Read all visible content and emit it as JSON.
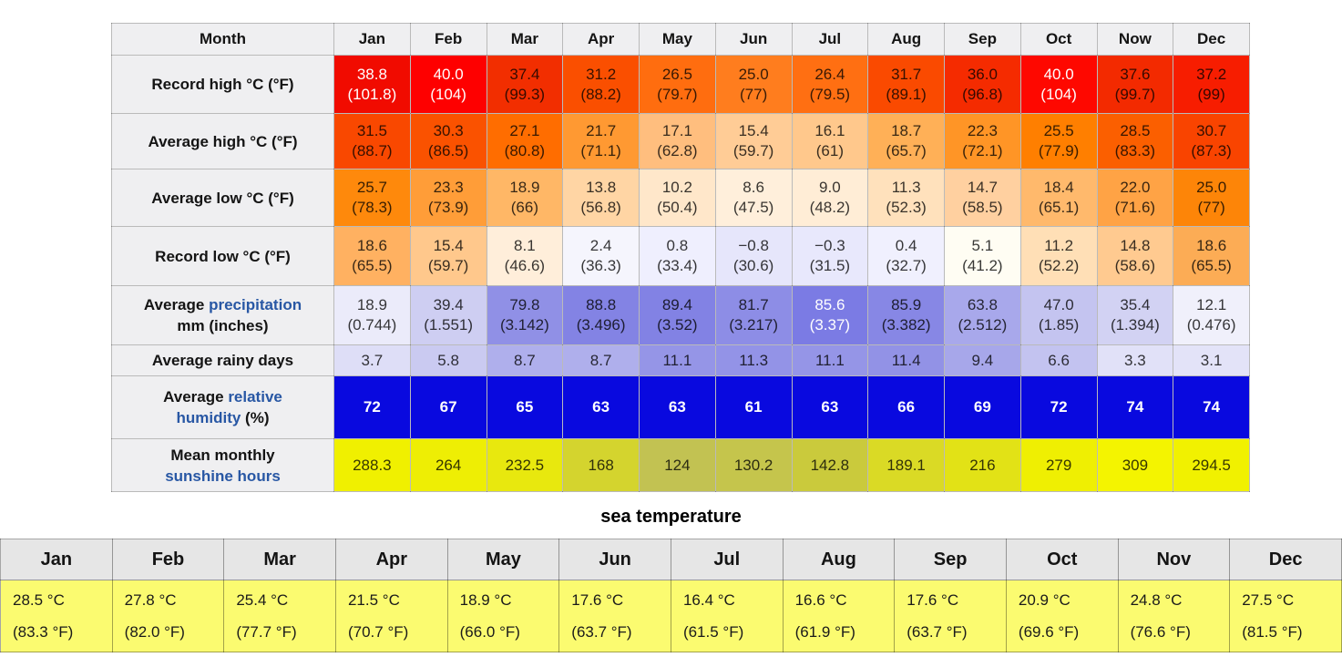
{
  "theme": {
    "link_color": "#2857A4",
    "humidity_blue": "#0909DF",
    "sea_cell_bg": "#FBFB70",
    "header_bg": "#EFEFF1"
  },
  "climate_table": {
    "header": {
      "label": "Month",
      "months": [
        "Jan",
        "Feb",
        "Mar",
        "Apr",
        "May",
        "Jun",
        "Jul",
        "Aug",
        "Sep",
        "Oct",
        "Now",
        "Dec"
      ]
    },
    "rows": [
      {
        "id": "record-high",
        "label_parts": [
          {
            "text": "Record high °C (°F)"
          }
        ],
        "cells": [
          {
            "v": "38.8",
            "v2": "(101.8)",
            "bg": "#F10B00",
            "fg": "w"
          },
          {
            "v": "40.0",
            "v2": "(104)",
            "bg": "#FE0000",
            "fg": "w"
          },
          {
            "v": "37.4",
            "v2": "(99.3)",
            "bg": "#F22E00"
          },
          {
            "v": "31.2",
            "v2": "(88.2)",
            "bg": "#FA4F00"
          },
          {
            "v": "26.5",
            "v2": "(79.7)",
            "bg": "#FF6D0F"
          },
          {
            "v": "25.0",
            "v2": "(77)",
            "bg": "#FF7D1E"
          },
          {
            "v": "26.4",
            "v2": "(79.5)",
            "bg": "#FF6F12"
          },
          {
            "v": "31.7",
            "v2": "(89.1)",
            "bg": "#FA4A00"
          },
          {
            "v": "36.0",
            "v2": "(96.8)",
            "bg": "#F52B00"
          },
          {
            "v": "40.0",
            "v2": "(104)",
            "bg": "#FE0800",
            "fg": "w"
          },
          {
            "v": "37.6",
            "v2": "(99.7)",
            "bg": "#F32A00"
          },
          {
            "v": "37.2",
            "v2": "(99)",
            "bg": "#F71D00"
          }
        ]
      },
      {
        "id": "avg-high",
        "label_parts": [
          {
            "text": "Average high °C (°F)"
          }
        ],
        "cells": [
          {
            "v": "31.5",
            "v2": "(88.7)",
            "bg": "#F94800"
          },
          {
            "v": "30.3",
            "v2": "(86.5)",
            "bg": "#FA5200"
          },
          {
            "v": "27.1",
            "v2": "(80.8)",
            "bg": "#FF6D00"
          },
          {
            "v": "21.7",
            "v2": "(71.1)",
            "bg": "#FF9932"
          },
          {
            "v": "17.1",
            "v2": "(62.8)",
            "bg": "#FFBE7E"
          },
          {
            "v": "15.4",
            "v2": "(59.7)",
            "bg": "#FFCC96"
          },
          {
            "v": "16.1",
            "v2": "(61)",
            "bg": "#FFC88C"
          },
          {
            "v": "18.7",
            "v2": "(65.7)",
            "bg": "#FFB057"
          },
          {
            "v": "22.3",
            "v2": "(72.1)",
            "bg": "#FF9526"
          },
          {
            "v": "25.5",
            "v2": "(77.9)",
            "bg": "#FF7F00"
          },
          {
            "v": "28.5",
            "v2": "(83.3)",
            "bg": "#FB5F00"
          },
          {
            "v": "30.7",
            "v2": "(87.3)",
            "bg": "#F94400"
          }
        ]
      },
      {
        "id": "avg-low",
        "label_parts": [
          {
            "text": "Average low °C (°F)"
          }
        ],
        "cells": [
          {
            "v": "25.7",
            "v2": "(78.3)",
            "bg": "#FE890C"
          },
          {
            "v": "23.3",
            "v2": "(73.9)",
            "bg": "#FF9D38"
          },
          {
            "v": "18.9",
            "v2": "(66)",
            "bg": "#FFB766"
          },
          {
            "v": "13.8",
            "v2": "(56.8)",
            "bg": "#FFD5A4"
          },
          {
            "v": "10.2",
            "v2": "(50.4)",
            "bg": "#FFE7CA"
          },
          {
            "v": "8.6",
            "v2": "(47.5)",
            "bg": "#FFEFDB"
          },
          {
            "v": "9.0",
            "v2": "(48.2)",
            "bg": "#FFEDD6"
          },
          {
            "v": "11.3",
            "v2": "(52.3)",
            "bg": "#FFE1BC"
          },
          {
            "v": "14.7",
            "v2": "(58.5)",
            "bg": "#FFD0A0"
          },
          {
            "v": "18.4",
            "v2": "(65.1)",
            "bg": "#FFB96C"
          },
          {
            "v": "22.0",
            "v2": "(71.6)",
            "bg": "#FFA345"
          },
          {
            "v": "25.0",
            "v2": "(77)",
            "bg": "#FD8508"
          }
        ]
      },
      {
        "id": "record-low",
        "label_parts": [
          {
            "text": "Record low °C (°F)"
          }
        ],
        "cells": [
          {
            "v": "18.6",
            "v2": "(65.5)",
            "bg": "#FFB161"
          },
          {
            "v": "15.4",
            "v2": "(59.7)",
            "bg": "#FFC88C"
          },
          {
            "v": "8.1",
            "v2": "(46.6)",
            "bg": "#FFEEDA"
          },
          {
            "v": "2.4",
            "v2": "(36.3)",
            "bg": "#F5F5FD"
          },
          {
            "v": "0.8",
            "v2": "(33.4)",
            "bg": "#EFEFFE"
          },
          {
            "v": "−0.8",
            "v2": "(30.6)",
            "bg": "#E6E6FB"
          },
          {
            "v": "−0.3",
            "v2": "(31.5)",
            "bg": "#E8E8FC"
          },
          {
            "v": "0.4",
            "v2": "(32.7)",
            "bg": "#F0F0FE"
          },
          {
            "v": "5.1",
            "v2": "(41.2)",
            "bg": "#FFFDF3"
          },
          {
            "v": "11.2",
            "v2": "(52.2)",
            "bg": "#FFDFB6"
          },
          {
            "v": "14.8",
            "v2": "(58.6)",
            "bg": "#FFCA90"
          },
          {
            "v": "18.6",
            "v2": "(65.5)",
            "bg": "#FCAC55"
          }
        ]
      },
      {
        "id": "precip",
        "label_parts": [
          {
            "text": "Average "
          },
          {
            "text": "precipitation",
            "link": true,
            "name": "precipitation-link"
          },
          {
            "br": true
          },
          {
            "text": "mm (inches)"
          }
        ],
        "cells": [
          {
            "v": "18.9",
            "v2": "(0.744)",
            "bg": "#EBEBFA"
          },
          {
            "v": "39.4",
            "v2": "(1.551)",
            "bg": "#CECEF2"
          },
          {
            "v": "79.8",
            "v2": "(3.142)",
            "bg": "#9090E6"
          },
          {
            "v": "88.8",
            "v2": "(3.496)",
            "bg": "#8383E4"
          },
          {
            "v": "89.4",
            "v2": "(3.52)",
            "bg": "#8282E4"
          },
          {
            "v": "81.7",
            "v2": "(3.217)",
            "bg": "#8D8DE6"
          },
          {
            "v": "85.6",
            "v2": "(3.37)",
            "bg": "#7B7BE4",
            "fg": "w"
          },
          {
            "v": "85.9",
            "v2": "(3.382)",
            "bg": "#8787E5"
          },
          {
            "v": "63.8",
            "v2": "(2.512)",
            "bg": "#A8A8EB"
          },
          {
            "v": "47.0",
            "v2": "(1.85)",
            "bg": "#C4C4F0"
          },
          {
            "v": "35.4",
            "v2": "(1.394)",
            "bg": "#D2D2F3"
          },
          {
            "v": "12.1",
            "v2": "(0.476)",
            "bg": "#F0F0FB"
          }
        ]
      },
      {
        "id": "rainy",
        "label_parts": [
          {
            "text": "Average rainy days"
          }
        ],
        "cells": [
          {
            "v": "3.7",
            "bg": "#DEDEF7"
          },
          {
            "v": "5.8",
            "bg": "#CACAF1"
          },
          {
            "v": "8.7",
            "bg": "#AFAFEC"
          },
          {
            "v": "8.7",
            "bg": "#AFAFEC"
          },
          {
            "v": "11.1",
            "bg": "#9595E7"
          },
          {
            "v": "11.3",
            "bg": "#9393E7"
          },
          {
            "v": "11.1",
            "bg": "#9595E7"
          },
          {
            "v": "11.4",
            "bg": "#9292E6"
          },
          {
            "v": "9.4",
            "bg": "#A7A7EA"
          },
          {
            "v": "6.6",
            "bg": "#C3C3F0"
          },
          {
            "v": "3.3",
            "bg": "#E1E1F8"
          },
          {
            "v": "3.1",
            "bg": "#E3E3F8"
          }
        ]
      },
      {
        "id": "humidity",
        "label_parts": [
          {
            "text": "Average "
          },
          {
            "text": "relative",
            "link": true,
            "name": "relative-humidity-link"
          },
          {
            "br": true
          },
          {
            "text": "humidity",
            "link": true,
            "name": "relative-humidity-link"
          },
          {
            "text": " (%)"
          }
        ],
        "cells": [
          {
            "v": "72",
            "bg": "#0909DF",
            "fg": "w"
          },
          {
            "v": "67",
            "bg": "#0909DF",
            "fg": "w"
          },
          {
            "v": "65",
            "bg": "#0909DF",
            "fg": "w"
          },
          {
            "v": "63",
            "bg": "#0909DF",
            "fg": "w"
          },
          {
            "v": "63",
            "bg": "#0909DF",
            "fg": "w"
          },
          {
            "v": "61",
            "bg": "#0909DF",
            "fg": "w"
          },
          {
            "v": "63",
            "bg": "#0909DF",
            "fg": "w"
          },
          {
            "v": "66",
            "bg": "#0909DF",
            "fg": "w"
          },
          {
            "v": "69",
            "bg": "#0909DF",
            "fg": "w"
          },
          {
            "v": "72",
            "bg": "#0909DF",
            "fg": "w"
          },
          {
            "v": "74",
            "bg": "#0909DF",
            "fg": "w"
          },
          {
            "v": "74",
            "bg": "#0909DF",
            "fg": "w"
          }
        ]
      },
      {
        "id": "sunshine",
        "label_parts": [
          {
            "text": "Mean monthly"
          },
          {
            "br": true
          },
          {
            "text": "sunshine hours",
            "link": true,
            "name": "sunshine-hours-link"
          }
        ],
        "cells": [
          {
            "v": "288.3",
            "bg": "#F0F000"
          },
          {
            "v": "264",
            "bg": "#EEEE04"
          },
          {
            "v": "232.5",
            "bg": "#E8E80E"
          },
          {
            "v": "168",
            "bg": "#D4D42E"
          },
          {
            "v": "124",
            "bg": "#C2C252"
          },
          {
            "v": "130.2",
            "bg": "#C5C54C"
          },
          {
            "v": "142.8",
            "bg": "#CACA3C"
          },
          {
            "v": "189.1",
            "bg": "#DADA25"
          },
          {
            "v": "216",
            "bg": "#E2E216"
          },
          {
            "v": "279",
            "bg": "#EFEF02"
          },
          {
            "v": "309",
            "bg": "#F4F400"
          },
          {
            "v": "294.5",
            "bg": "#F1F100"
          }
        ]
      }
    ]
  },
  "sea_section": {
    "title": "sea temperature",
    "months": [
      "Jan",
      "Feb",
      "Mar",
      "Apr",
      "May",
      "Jun",
      "Jul",
      "Aug",
      "Sep",
      "Oct",
      "Nov",
      "Dec"
    ],
    "cells": [
      {
        "l1": "28.5 °C",
        "l2": "(83.3 °F)"
      },
      {
        "l1": "27.8 °C",
        "l2": "(82.0 °F)"
      },
      {
        "l1": "25.4 °C",
        "l2": "(77.7 °F)"
      },
      {
        "l1": "21.5 °C",
        "l2": "(70.7 °F)"
      },
      {
        "l1": "18.9 °C",
        "l2": "(66.0 °F)"
      },
      {
        "l1": "17.6 °C",
        "l2": "(63.7 °F)"
      },
      {
        "l1": "16.4 °C",
        "l2": "(61.5 °F)"
      },
      {
        "l1": "16.6 °C",
        "l2": "(61.9 °F)"
      },
      {
        "l1": "17.6 °C",
        "l2": "(63.7 °F)"
      },
      {
        "l1": "20.9 °C",
        "l2": "(69.6 °F)"
      },
      {
        "l1": "24.8 °C",
        "l2": "(76.6 °F)"
      },
      {
        "l1": "27.5 °C",
        "l2": "(81.5 °F)"
      }
    ]
  },
  "chart_data": {
    "type": "table",
    "categories": [
      "Jan",
      "Feb",
      "Mar",
      "Apr",
      "May",
      "Jun",
      "Jul",
      "Aug",
      "Sep",
      "Oct",
      "Nov",
      "Dec"
    ],
    "series": [
      {
        "name": "Record high °C",
        "values": [
          38.8,
          40.0,
          37.4,
          31.2,
          26.5,
          25.0,
          26.4,
          31.7,
          36.0,
          40.0,
          37.6,
          37.2
        ]
      },
      {
        "name": "Record high °F",
        "values": [
          101.8,
          104,
          99.3,
          88.2,
          79.7,
          77,
          79.5,
          89.1,
          96.8,
          104,
          99.7,
          99
        ]
      },
      {
        "name": "Average high °C",
        "values": [
          31.5,
          30.3,
          27.1,
          21.7,
          17.1,
          15.4,
          16.1,
          18.7,
          22.3,
          25.5,
          28.5,
          30.7
        ]
      },
      {
        "name": "Average high °F",
        "values": [
          88.7,
          86.5,
          80.8,
          71.1,
          62.8,
          59.7,
          61,
          65.7,
          72.1,
          77.9,
          83.3,
          87.3
        ]
      },
      {
        "name": "Average low °C",
        "values": [
          25.7,
          23.3,
          18.9,
          13.8,
          10.2,
          8.6,
          9.0,
          11.3,
          14.7,
          18.4,
          22.0,
          25.0
        ]
      },
      {
        "name": "Average low °F",
        "values": [
          78.3,
          73.9,
          66,
          56.8,
          50.4,
          47.5,
          48.2,
          52.3,
          58.5,
          65.1,
          71.6,
          77
        ]
      },
      {
        "name": "Record low °C",
        "values": [
          18.6,
          15.4,
          8.1,
          2.4,
          0.8,
          -0.8,
          -0.3,
          0.4,
          5.1,
          11.2,
          14.8,
          18.6
        ]
      },
      {
        "name": "Record low °F",
        "values": [
          65.5,
          59.7,
          46.6,
          36.3,
          33.4,
          30.6,
          31.5,
          32.7,
          41.2,
          52.2,
          58.6,
          65.5
        ]
      },
      {
        "name": "Average precipitation mm",
        "values": [
          18.9,
          39.4,
          79.8,
          88.8,
          89.4,
          81.7,
          85.6,
          85.9,
          63.8,
          47.0,
          35.4,
          12.1
        ]
      },
      {
        "name": "Average precipitation inches",
        "values": [
          0.744,
          1.551,
          3.142,
          3.496,
          3.52,
          3.217,
          3.37,
          3.382,
          2.512,
          1.85,
          1.394,
          0.476
        ]
      },
      {
        "name": "Average rainy days",
        "values": [
          3.7,
          5.8,
          8.7,
          8.7,
          11.1,
          11.3,
          11.1,
          11.4,
          9.4,
          6.6,
          3.3,
          3.1
        ]
      },
      {
        "name": "Average relative humidity %",
        "values": [
          72,
          67,
          65,
          63,
          63,
          61,
          63,
          66,
          69,
          72,
          74,
          74
        ]
      },
      {
        "name": "Mean monthly sunshine hours",
        "values": [
          288.3,
          264,
          232.5,
          168,
          124,
          130.2,
          142.8,
          189.1,
          216,
          279,
          309,
          294.5
        ]
      },
      {
        "name": "Sea temperature °C",
        "values": [
          28.5,
          27.8,
          25.4,
          21.5,
          18.9,
          17.6,
          16.4,
          16.6,
          17.6,
          20.9,
          24.8,
          27.5
        ]
      },
      {
        "name": "Sea temperature °F",
        "values": [
          83.3,
          82.0,
          77.7,
          70.7,
          66.0,
          63.7,
          61.5,
          61.9,
          63.7,
          69.6,
          76.6,
          81.5
        ]
      }
    ],
    "title": "sea temperature",
    "legend_position": "none",
    "grid": true
  }
}
